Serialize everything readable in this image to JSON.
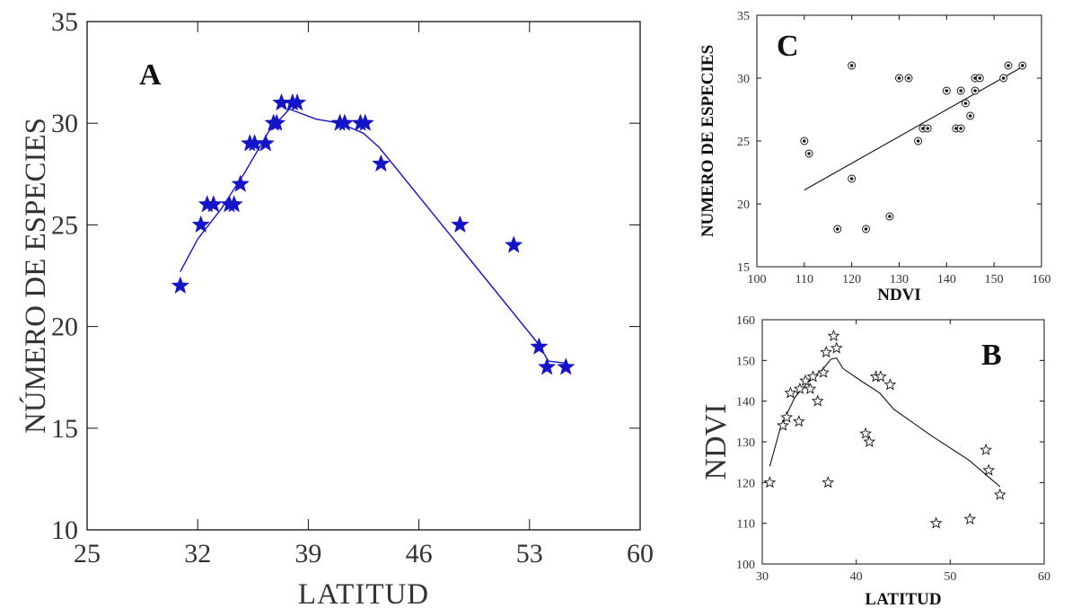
{
  "chart_data": [
    {
      "id": "A",
      "type": "scatter",
      "panel_label": "A",
      "xlabel": "LATITUD",
      "ylabel": "NÚMERO DE ESPECIES",
      "xlim": [
        25,
        60
      ],
      "ylim": [
        10,
        35
      ],
      "xticks": [
        "25",
        "32",
        "39",
        "46",
        "53",
        "60"
      ],
      "yticks": [
        "10",
        "15",
        "20",
        "25",
        "30",
        "35"
      ],
      "marker": "star",
      "color": "#1414c8",
      "points": [
        [
          30.9,
          22
        ],
        [
          32.2,
          25
        ],
        [
          32.6,
          26
        ],
        [
          33.0,
          26
        ],
        [
          34.0,
          26
        ],
        [
          34.3,
          26
        ],
        [
          34.7,
          27
        ],
        [
          35.3,
          29
        ],
        [
          35.6,
          29
        ],
        [
          36.3,
          29
        ],
        [
          36.8,
          30
        ],
        [
          37.0,
          30
        ],
        [
          37.3,
          31
        ],
        [
          38.0,
          31
        ],
        [
          38.3,
          31
        ],
        [
          41.0,
          30
        ],
        [
          41.3,
          30
        ],
        [
          42.3,
          30
        ],
        [
          42.6,
          30
        ],
        [
          43.6,
          28
        ],
        [
          48.6,
          25
        ],
        [
          52.0,
          24
        ],
        [
          53.6,
          19
        ],
        [
          54.1,
          18
        ],
        [
          55.3,
          18
        ]
      ],
      "fit_line": [
        [
          30.9,
          22.7
        ],
        [
          32.0,
          24.3
        ],
        [
          33.5,
          25.8
        ],
        [
          35.0,
          27.6
        ],
        [
          36.5,
          29.6
        ],
        [
          37.8,
          30.7
        ],
        [
          39.5,
          30.2
        ],
        [
          41.0,
          30.0
        ],
        [
          42.5,
          29.5
        ],
        [
          43.5,
          28.8
        ],
        [
          48.5,
          24.0
        ],
        [
          53.5,
          19.2
        ],
        [
          54.2,
          18.3
        ],
        [
          55.3,
          18.2
        ]
      ]
    },
    {
      "id": "C",
      "type": "scatter",
      "panel_label": "C",
      "xlabel": "NDVI",
      "ylabel": "NUMERO DE ESPECIES",
      "xlim": [
        100,
        160
      ],
      "ylim": [
        15,
        35
      ],
      "xticks": [
        "100",
        "110",
        "120",
        "130",
        "140",
        "150",
        "160"
      ],
      "yticks": [
        "15",
        "20",
        "25",
        "30",
        "35"
      ],
      "marker": "dotted-circle",
      "color": "#111111",
      "points": [
        [
          110,
          25
        ],
        [
          111,
          24
        ],
        [
          117,
          18
        ],
        [
          120,
          31
        ],
        [
          120,
          22
        ],
        [
          123,
          18
        ],
        [
          128,
          19
        ],
        [
          130,
          30
        ],
        [
          132,
          30
        ],
        [
          134,
          25
        ],
        [
          135,
          26
        ],
        [
          136,
          26
        ],
        [
          140,
          29
        ],
        [
          142,
          26
        ],
        [
          143,
          26
        ],
        [
          143,
          29
        ],
        [
          144,
          28
        ],
        [
          145,
          27
        ],
        [
          146,
          29
        ],
        [
          146,
          30
        ],
        [
          147,
          30
        ],
        [
          152,
          30
        ],
        [
          153,
          31
        ],
        [
          156,
          31
        ]
      ],
      "fit_line": [
        [
          110,
          21.1
        ],
        [
          156,
          30.9
        ]
      ]
    },
    {
      "id": "B",
      "type": "scatter",
      "panel_label": "B",
      "xlabel": "LATITUD",
      "ylabel": "NDVI",
      "xlim": [
        30,
        60
      ],
      "ylim": [
        100,
        160
      ],
      "xticks": [
        "30",
        "40",
        "50",
        "60"
      ],
      "yticks": [
        "100",
        "110",
        "120",
        "130",
        "140",
        "150",
        "160"
      ],
      "marker": "hollow-star",
      "color": "#111111",
      "points": [
        [
          30.8,
          120
        ],
        [
          32.2,
          134
        ],
        [
          32.6,
          136
        ],
        [
          33.0,
          142
        ],
        [
          33.9,
          135
        ],
        [
          34.0,
          143
        ],
        [
          34.6,
          145
        ],
        [
          35.1,
          143
        ],
        [
          35.4,
          146
        ],
        [
          35.9,
          140
        ],
        [
          36.5,
          147
        ],
        [
          36.8,
          152
        ],
        [
          37.0,
          120
        ],
        [
          37.6,
          156
        ],
        [
          37.9,
          153
        ],
        [
          41.0,
          132
        ],
        [
          41.4,
          130
        ],
        [
          42.1,
          146
        ],
        [
          42.6,
          146
        ],
        [
          43.6,
          144
        ],
        [
          48.5,
          110
        ],
        [
          52.1,
          111
        ],
        [
          53.8,
          128
        ],
        [
          54.1,
          123
        ],
        [
          55.3,
          117
        ]
      ],
      "fit_line": [
        [
          30.8,
          124
        ],
        [
          32.0,
          134
        ],
        [
          33.5,
          141
        ],
        [
          35.0,
          145
        ],
        [
          36.5,
          148
        ],
        [
          37.3,
          150.3
        ],
        [
          37.9,
          150.6
        ],
        [
          38.6,
          148
        ],
        [
          40.5,
          145
        ],
        [
          42.5,
          142
        ],
        [
          44.0,
          138
        ],
        [
          48.0,
          131.5
        ],
        [
          52.0,
          125.5
        ],
        [
          55.3,
          119
        ]
      ]
    }
  ]
}
